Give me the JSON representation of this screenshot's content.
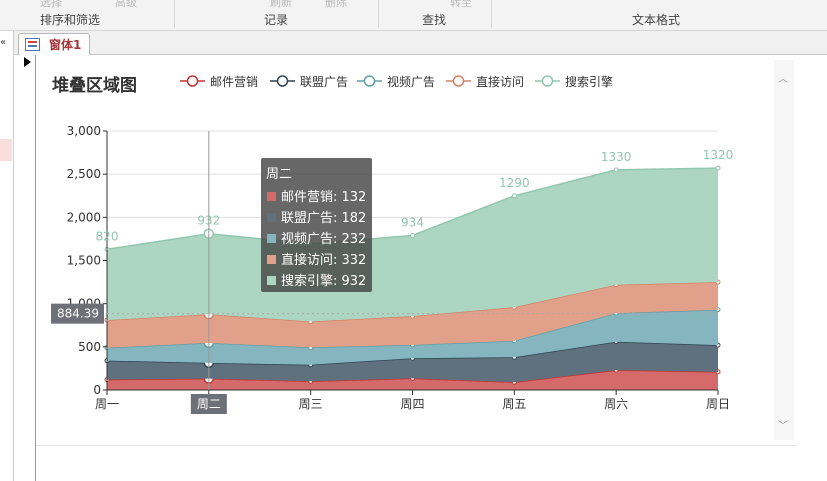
{
  "ribbon": {
    "groups": [
      "排序和筛选",
      "记录",
      "查找",
      "文本格式"
    ],
    "faded_labels": [
      "选择",
      "高级",
      "刷新",
      "删除",
      "转至"
    ]
  },
  "nav": {
    "close_glyph": "«"
  },
  "tabs": [
    {
      "label": "窗体1"
    }
  ],
  "chart_data": {
    "type": "area",
    "stacked": true,
    "title": "堆叠区域图",
    "categories": [
      "周一",
      "周二",
      "周三",
      "周四",
      "周五",
      "周六",
      "周日"
    ],
    "ylim": [
      0,
      3000
    ],
    "yticks": [
      "0",
      "500",
      "1,000",
      "1,500",
      "2,000",
      "2,500",
      "3,000"
    ],
    "ytick_values": [
      0,
      500,
      1000,
      1500,
      2000,
      2500,
      3000
    ],
    "grid": true,
    "legend_position": "top",
    "series": [
      {
        "name": "邮件营销",
        "values": [
          120,
          132,
          101,
          134,
          90,
          230,
          210
        ],
        "color": "#c23531",
        "fill": "#d46a6a"
      },
      {
        "name": "联盟广告",
        "values": [
          220,
          182,
          191,
          234,
          290,
          330,
          310
        ],
        "color": "#2f4554",
        "fill": "#5f707e"
      },
      {
        "name": "视频广告",
        "values": [
          150,
          232,
          201,
          154,
          190,
          330,
          410
        ],
        "color": "#61a0a8",
        "fill": "#85b5be"
      },
      {
        "name": "直接访问",
        "values": [
          320,
          332,
          301,
          334,
          390,
          330,
          320
        ],
        "color": "#d48265",
        "fill": "#e0a089"
      },
      {
        "name": "搜索引擎",
        "values": [
          820,
          932,
          901,
          934,
          1290,
          1330,
          1320
        ],
        "color": "#91c7ae",
        "fill": "#acd6c2"
      }
    ],
    "top_labels": [
      "820",
      "932",
      "934",
      "1290",
      "1330",
      "1320"
    ],
    "top_label_indices": [
      0,
      1,
      3,
      4,
      5,
      6
    ],
    "tooltip": {
      "index": 1,
      "title": "周二",
      "lines": [
        "邮件营销: 132",
        "联盟广告: 182",
        "视频广告: 232",
        "直接访问: 332",
        "搜索引擎: 932"
      ]
    },
    "crosshair_y_label": "884.39",
    "crosshair_y_value": 884.39,
    "crosshair_x_label": "周二"
  }
}
